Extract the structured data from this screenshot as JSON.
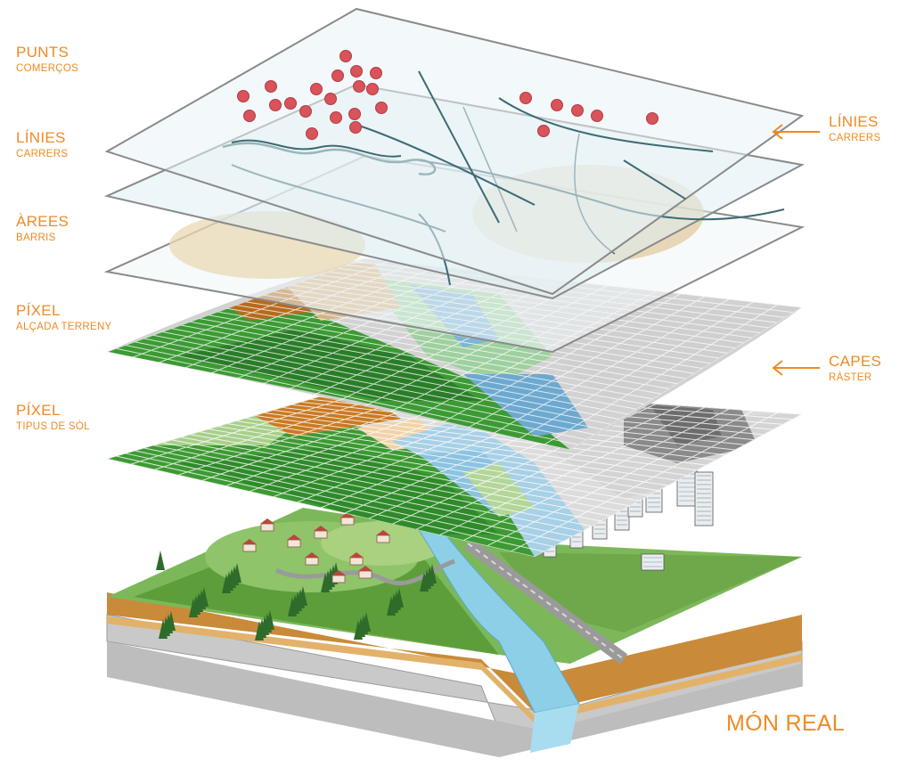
{
  "labels": {
    "punts": {
      "title": "PUNTS",
      "subtitle": "COMERÇOS"
    },
    "linies_left": {
      "title": "LÍNIES",
      "subtitle": "CARRERS"
    },
    "arees": {
      "title": "ÀREES",
      "subtitle": "BARRIS"
    },
    "pixel_alcada": {
      "title": "PÍXEL",
      "subtitle": "ALÇADA TERRENY"
    },
    "pixel_sol": {
      "title": "PÍXEL",
      "subtitle": "TIPUS DE SÒL"
    },
    "linies_right": {
      "title": "LÍNIES",
      "subtitle": "CARRERS"
    },
    "capes": {
      "title": "CAPES",
      "subtitle": "RÀSTER"
    },
    "mon_real": {
      "title": "MÓN REAL"
    }
  },
  "layers": [
    {
      "name": "points-layer",
      "kind": "vector",
      "feature": "point"
    },
    {
      "name": "lines-layer",
      "kind": "vector",
      "feature": "line"
    },
    {
      "name": "areas-layer",
      "kind": "vector",
      "feature": "polygon"
    },
    {
      "name": "elevation-raster",
      "kind": "raster"
    },
    {
      "name": "soil-type-raster",
      "kind": "raster"
    },
    {
      "name": "real-world-block",
      "kind": "illustration"
    }
  ],
  "colors": {
    "label": "#ef8a25",
    "point": "#d9535b",
    "street": "#3d6b73",
    "green_dark": "#2f7d2a",
    "green": "#4aa33b",
    "green_light": "#a8cf8a",
    "brown": "#c9781f",
    "water": "#7fbfdc",
    "grey": "#c8c8c8",
    "grey_dark": "#7a7a7a"
  }
}
